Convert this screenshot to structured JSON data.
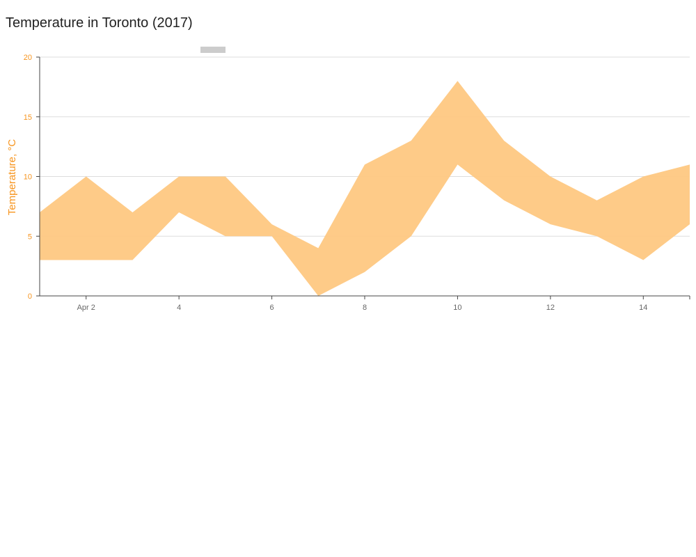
{
  "chart_data": {
    "type": "area",
    "subtype": "range",
    "title": "Temperature in Toronto (2017)",
    "ylabel": "Temperature, °C",
    "xlabel": "",
    "x": [
      "Apr 1",
      "Apr 2",
      "Apr 3",
      "Apr 4",
      "Apr 5",
      "Apr 6",
      "Apr 7",
      "Apr 8",
      "Apr 9",
      "Apr 10",
      "Apr 11",
      "Apr 12",
      "Apr 13",
      "Apr 14",
      "Apr 15"
    ],
    "low": [
      3,
      3,
      3,
      7,
      5,
      5,
      0,
      2,
      5,
      11,
      8,
      6,
      5,
      3,
      6
    ],
    "high": [
      7,
      10,
      7,
      10,
      10,
      6,
      4,
      11,
      13,
      18,
      13,
      10,
      8,
      10,
      11
    ],
    "xticks": [
      {
        "day": 2,
        "label": "Apr 2"
      },
      {
        "day": 4,
        "label": "4"
      },
      {
        "day": 6,
        "label": "6"
      },
      {
        "day": 8,
        "label": "8"
      },
      {
        "day": 10,
        "label": "10"
      },
      {
        "day": 12,
        "label": "12"
      },
      {
        "day": 14,
        "label": "14"
      }
    ],
    "yticks": [
      0,
      5,
      10,
      15,
      20
    ],
    "ylim": [
      0,
      20
    ],
    "xlim": [
      1,
      15
    ],
    "grid": true,
    "colors": {
      "fill": "#fec77f",
      "axis_label": "#f7941d",
      "grid": "#dddddd",
      "axis": "#444444",
      "legend_swatch": "#cccccc"
    }
  }
}
